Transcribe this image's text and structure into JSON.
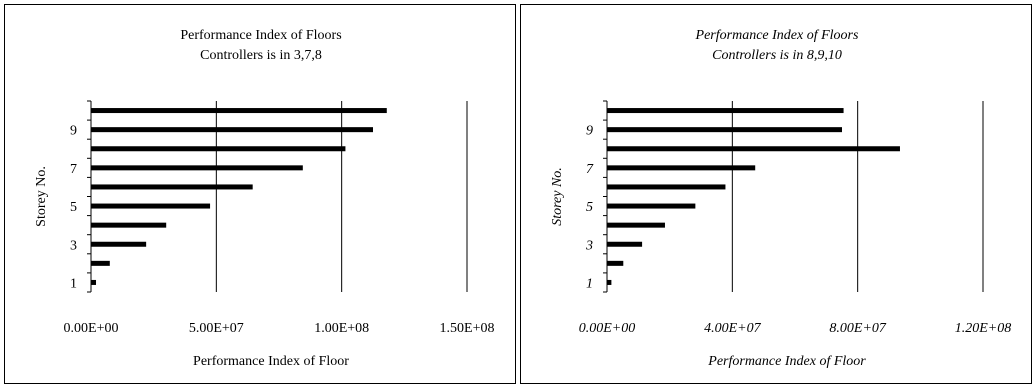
{
  "chart_data": [
    {
      "type": "bar",
      "orientation": "horizontal",
      "title": [
        "Performance Index of Floors",
        "Controllers is in 3,7,8"
      ],
      "xlabel": "Performance Index of Floor",
      "ylabel": "Storey No.",
      "categories": [
        1,
        2,
        3,
        4,
        5,
        6,
        7,
        8,
        9,
        10
      ],
      "y_tick_labels": [
        "1",
        "3",
        "5",
        "7",
        "9"
      ],
      "x_tick_labels": [
        "0.00E+00",
        "5.00E+07",
        "1.00E+08",
        "1.50E+08"
      ],
      "xlim": [
        0,
        150000000
      ],
      "x_ticks": [
        0,
        50000000,
        100000000,
        150000000
      ],
      "grid": "vertical",
      "italic": false,
      "values": [
        2000000,
        7500000,
        22000000,
        30000000,
        47500000,
        64500000,
        84500000,
        101500000,
        112500000,
        118000000
      ]
    },
    {
      "type": "bar",
      "orientation": "horizontal",
      "title": [
        "Performance Index of Floors",
        "Controllers is in 8,9,10"
      ],
      "xlabel": "Performance Index of Floor",
      "ylabel": "Storey No.",
      "categories": [
        1,
        2,
        3,
        4,
        5,
        6,
        7,
        8,
        9,
        10
      ],
      "y_tick_labels": [
        "1",
        "3",
        "5",
        "7",
        "9"
      ],
      "x_tick_labels": [
        "0.00E+00",
        "4.00E+07",
        "8.00E+07",
        "1.20E+08"
      ],
      "xlim": [
        0,
        120000000
      ],
      "x_ticks": [
        0,
        40000000,
        80000000,
        120000000
      ],
      "grid": "vertical",
      "italic": true,
      "values": [
        1400000,
        5200000,
        11200000,
        18500000,
        28200000,
        37800000,
        47300000,
        93500000,
        75000000,
        75500000
      ]
    }
  ]
}
